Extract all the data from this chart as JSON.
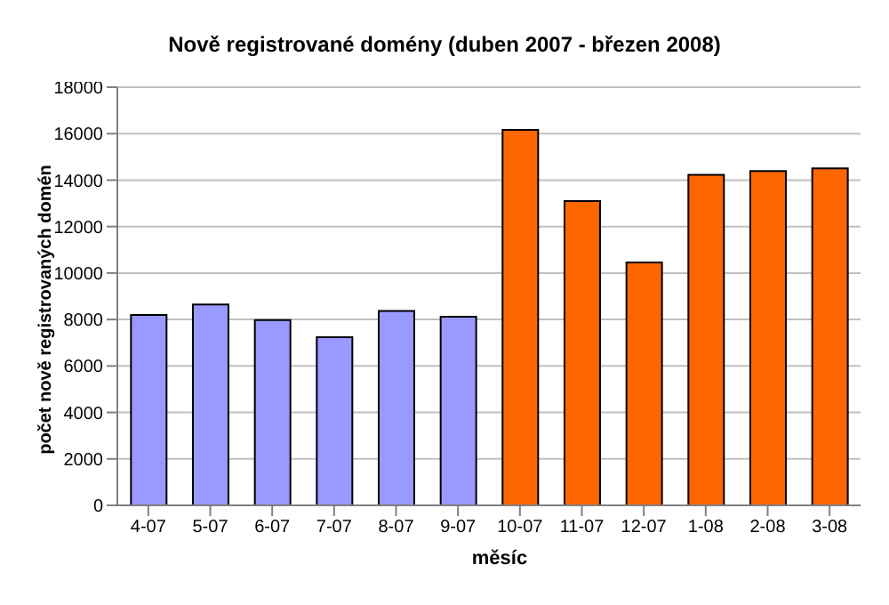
{
  "chart_data": {
    "type": "bar",
    "title": "Nově registrované domény (duben 2007 - březen 2008)",
    "xlabel": "měsíc",
    "ylabel": "počet nově registrovaných domén",
    "categories": [
      "4-07",
      "5-07",
      "6-07",
      "7-07",
      "8-07",
      "9-07",
      "10-07",
      "11-07",
      "12-07",
      "1-08",
      "2-08",
      "3-08"
    ],
    "values": [
      8200,
      8650,
      7980,
      7240,
      8370,
      8120,
      16160,
      13100,
      10460,
      14230,
      14390,
      14510
    ],
    "colors": [
      "#9999ff",
      "#9999ff",
      "#9999ff",
      "#9999ff",
      "#9999ff",
      "#9999ff",
      "#ff6600",
      "#ff6600",
      "#ff6600",
      "#ff6600",
      "#ff6600",
      "#ff6600"
    ],
    "ylim": [
      0,
      18000
    ],
    "yticks": [
      0,
      2000,
      4000,
      6000,
      8000,
      10000,
      12000,
      14000,
      16000,
      18000
    ],
    "grid": "y",
    "legend": false
  }
}
